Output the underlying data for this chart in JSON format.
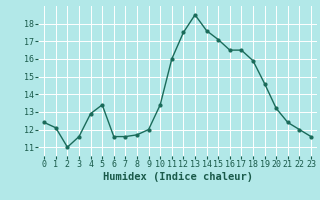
{
  "x": [
    0,
    1,
    2,
    3,
    4,
    5,
    6,
    7,
    8,
    9,
    10,
    11,
    12,
    13,
    14,
    15,
    16,
    17,
    18,
    19,
    20,
    21,
    22,
    23
  ],
  "y": [
    12.4,
    12.1,
    11.0,
    11.6,
    12.9,
    13.4,
    11.6,
    11.6,
    11.7,
    12.0,
    13.4,
    16.0,
    17.5,
    18.5,
    17.6,
    17.1,
    16.5,
    16.5,
    15.9,
    14.6,
    13.2,
    12.4,
    12.0,
    11.6
  ],
  "line_color": "#1a6b5a",
  "marker_color": "#1a6b5a",
  "bg_color": "#b2e8e8",
  "grid_color": "#ffffff",
  "xlabel": "Humidex (Indice chaleur)",
  "xlim": [
    -0.5,
    23.5
  ],
  "ylim": [
    10.5,
    19.0
  ],
  "yticks": [
    11,
    12,
    13,
    14,
    15,
    16,
    17,
    18
  ],
  "xtick_labels": [
    "0",
    "1",
    "2",
    "3",
    "4",
    "5",
    "6",
    "7",
    "8",
    "9",
    "10",
    "11",
    "12",
    "13",
    "14",
    "15",
    "16",
    "17",
    "18",
    "19",
    "20",
    "21",
    "22",
    "23"
  ],
  "font_color": "#1a5a4a",
  "tick_fontsize": 6,
  "label_fontsize": 7.5
}
